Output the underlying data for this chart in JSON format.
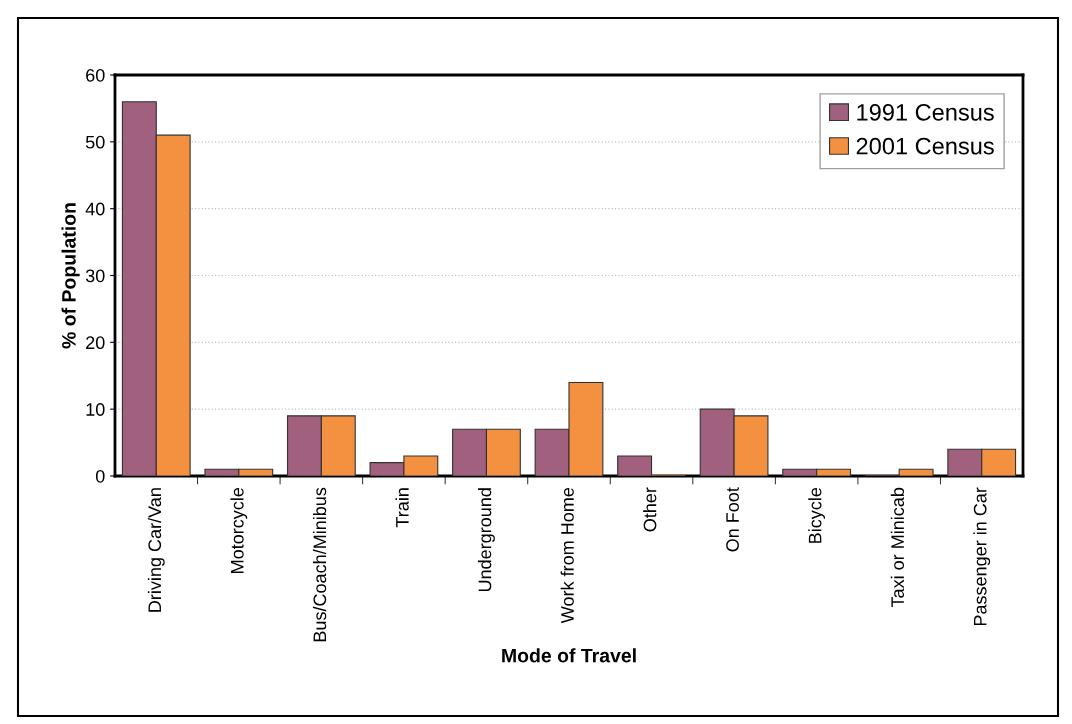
{
  "chart_data": {
    "type": "bar",
    "xlabel": "Mode of Travel",
    "ylabel": "% of Population",
    "categories": [
      "Driving Car/Van",
      "Motorcycle",
      "Bus/Coach/Minibus",
      "Train",
      "Underground",
      "Work from Home",
      "Other",
      "On Foot",
      "Bicycle",
      "Taxi or Minicab",
      "Passenger in Car"
    ],
    "series": [
      {
        "name": "1991 Census",
        "color": "#a0607e",
        "values": [
          56,
          1,
          9,
          2,
          7,
          7,
          3,
          10,
          1,
          0,
          4
        ]
      },
      {
        "name": "2001 Census",
        "color": "#f39141",
        "values": [
          51,
          1,
          9,
          3,
          7,
          14,
          0,
          9,
          1,
          1,
          4
        ]
      }
    ],
    "ylim": [
      0,
      60
    ],
    "yticks": [
      0,
      10,
      20,
      30,
      40,
      50,
      60
    ],
    "grid": "y",
    "legend": "top right"
  }
}
